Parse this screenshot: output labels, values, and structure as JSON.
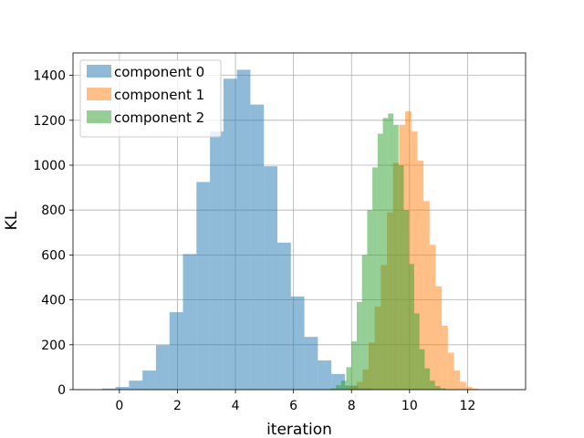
{
  "chart_data": {
    "type": "bar",
    "title": "",
    "xlabel": "iteration",
    "ylabel": "KL",
    "xlim": [
      -1.6,
      14.0
    ],
    "ylim": [
      0,
      1500
    ],
    "xticks": [
      0,
      2,
      4,
      6,
      8,
      10,
      12
    ],
    "yticks": [
      0,
      200,
      400,
      600,
      800,
      1000,
      1200,
      1400
    ],
    "grid": true,
    "legend_position": "top-left",
    "bar_alpha": 0.5,
    "series": [
      {
        "name": "component 0",
        "color": "#1f77b4",
        "bin_start": -0.6,
        "bin_width": 0.465,
        "values": [
          5,
          12,
          40,
          85,
          198,
          345,
          604,
          925,
          1150,
          1385,
          1425,
          1270,
          995,
          655,
          415,
          235,
          130,
          70,
          18,
          5
        ]
      },
      {
        "name": "component 1",
        "color": "#ff7f0e",
        "bin_start": 7.75,
        "bin_width": 0.21,
        "values": [
          5,
          15,
          35,
          90,
          210,
          370,
          555,
          790,
          1010,
          1180,
          1240,
          1150,
          1020,
          840,
          645,
          460,
          285,
          165,
          85,
          35,
          12,
          4
        ]
      },
      {
        "name": "component 2",
        "color": "#2ca02c",
        "bin_start": 7.1,
        "bin_width": 0.18,
        "values": [
          2,
          6,
          20,
          40,
          100,
          215,
          390,
          600,
          800,
          990,
          1140,
          1210,
          1230,
          1180,
          1000,
          800,
          560,
          340,
          180,
          95,
          40,
          16,
          6,
          2
        ]
      }
    ]
  }
}
